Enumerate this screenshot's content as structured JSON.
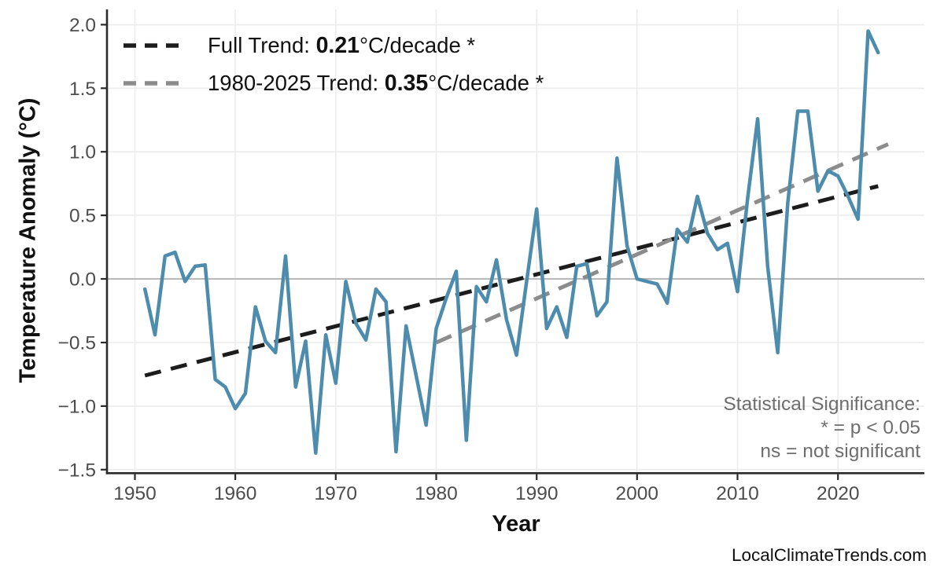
{
  "chart_data": {
    "type": "line",
    "title": "",
    "xlabel": "Year",
    "ylabel": "Temperature Anomaly (°C)",
    "xlim": [
      1947.3,
      2028.6
    ],
    "ylim": [
      -1.52,
      2.12
    ],
    "grid": true,
    "legend_position": "top-left",
    "x_ticks": [
      {
        "value": 1950,
        "label": "1950"
      },
      {
        "value": 1960,
        "label": "1960"
      },
      {
        "value": 1970,
        "label": "1970"
      },
      {
        "value": 1980,
        "label": "1980"
      },
      {
        "value": 1990,
        "label": "1990"
      },
      {
        "value": 2000,
        "label": "2000"
      },
      {
        "value": 2010,
        "label": "2010"
      },
      {
        "value": 2020,
        "label": "2020"
      }
    ],
    "y_ticks": [
      {
        "value": 2.0,
        "label": "2.0"
      },
      {
        "value": 1.5,
        "label": "1.5"
      },
      {
        "value": 1.0,
        "label": "1.0"
      },
      {
        "value": 0.5,
        "label": "0.5"
      },
      {
        "value": 0.0,
        "label": "0.0"
      },
      {
        "value": -0.5,
        "label": "−0.5"
      },
      {
        "value": -1.0,
        "label": "−1.0"
      },
      {
        "value": -1.5,
        "label": "−1.5"
      }
    ],
    "series": {
      "name": "annual-temperature-anomaly",
      "color": "#4e8cae",
      "years": [
        1951,
        1952,
        1953,
        1954,
        1955,
        1956,
        1957,
        1958,
        1959,
        1960,
        1961,
        1962,
        1963,
        1964,
        1965,
        1966,
        1967,
        1968,
        1969,
        1970,
        1971,
        1972,
        1973,
        1974,
        1975,
        1976,
        1977,
        1978,
        1979,
        1980,
        1981,
        1982,
        1983,
        1984,
        1985,
        1986,
        1987,
        1988,
        1989,
        1990,
        1991,
        1992,
        1993,
        1994,
        1995,
        1996,
        1997,
        1998,
        1999,
        2000,
        2001,
        2002,
        2003,
        2004,
        2005,
        2006,
        2007,
        2008,
        2009,
        2010,
        2011,
        2012,
        2013,
        2014,
        2015,
        2016,
        2017,
        2018,
        2019,
        2020,
        2021,
        2022,
        2023,
        2024
      ],
      "values": [
        -0.08,
        -0.44,
        0.18,
        0.21,
        -0.02,
        0.1,
        0.11,
        -0.79,
        -0.85,
        -1.02,
        -0.9,
        -0.22,
        -0.49,
        -0.58,
        0.18,
        -0.85,
        -0.49,
        -1.37,
        -0.44,
        -0.82,
        -0.02,
        -0.35,
        -0.48,
        -0.08,
        -0.18,
        -1.36,
        -0.37,
        -0.76,
        -1.15,
        -0.39,
        -0.15,
        0.06,
        -1.27,
        -0.06,
        -0.18,
        0.15,
        -0.32,
        -0.6,
        -0.02,
        0.55,
        -0.39,
        -0.22,
        -0.46,
        0.1,
        0.12,
        -0.29,
        -0.18,
        0.95,
        0.26,
        0.0,
        -0.02,
        -0.04,
        -0.19,
        0.39,
        0.29,
        0.65,
        0.36,
        0.23,
        0.28,
        -0.1,
        0.63,
        1.26,
        0.1,
        -0.58,
        0.6,
        1.32,
        1.32,
        0.69,
        0.85,
        0.81,
        0.65,
        0.47,
        1.95,
        1.78
      ]
    },
    "trends": [
      {
        "name": "full-trend",
        "label_prefix": "Full Trend: ",
        "rate": "0.21",
        "label_suffix": "°C/decade *",
        "color": "#1c1c1c",
        "x": [
          1951,
          2024
        ],
        "y": [
          -0.76,
          0.73
        ]
      },
      {
        "name": "recent-trend",
        "label_prefix": "1980-2025 Trend: ",
        "rate": "0.35",
        "label_suffix": "°C/decade *",
        "color": "#8c8c8c",
        "x": [
          1980,
          2025
        ],
        "y": [
          -0.5,
          1.06
        ]
      }
    ],
    "annotation": {
      "line1": "Statistical Significance:",
      "line2": "* = p < 0.05",
      "line3": "ns = not significant"
    },
    "colors": {
      "grid": "#ececec",
      "zero_line": "#b0b0b0",
      "axis": "#2b2b2b",
      "tick_label": "#4d4d4d"
    }
  },
  "footer": {
    "watermark": "LocalClimateTrends.com"
  }
}
